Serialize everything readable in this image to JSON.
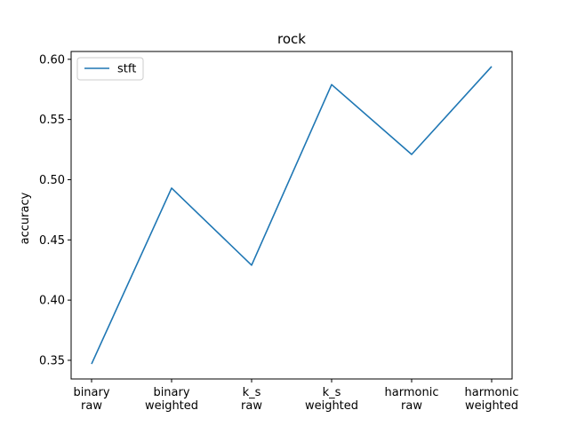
{
  "chart_data": {
    "type": "line",
    "title": "rock",
    "xlabel": "",
    "ylabel": "accuracy",
    "categories": [
      [
        "binary",
        "raw"
      ],
      [
        "binary",
        "weighted"
      ],
      [
        "k_s",
        "raw"
      ],
      [
        "k_s",
        "weighted"
      ],
      [
        "harmonic",
        "raw"
      ],
      [
        "harmonic",
        "weighted"
      ]
    ],
    "series": [
      {
        "name": "stft",
        "color": "#1f77b4",
        "values": [
          0.347,
          0.493,
          0.429,
          0.579,
          0.521,
          0.594
        ]
      }
    ],
    "ylim": [
      0.3345,
      0.6065
    ],
    "yticks": [
      "0.35",
      "0.40",
      "0.45",
      "0.50",
      "0.55",
      "0.60"
    ],
    "legend": "upper-left",
    "grid": false
  }
}
